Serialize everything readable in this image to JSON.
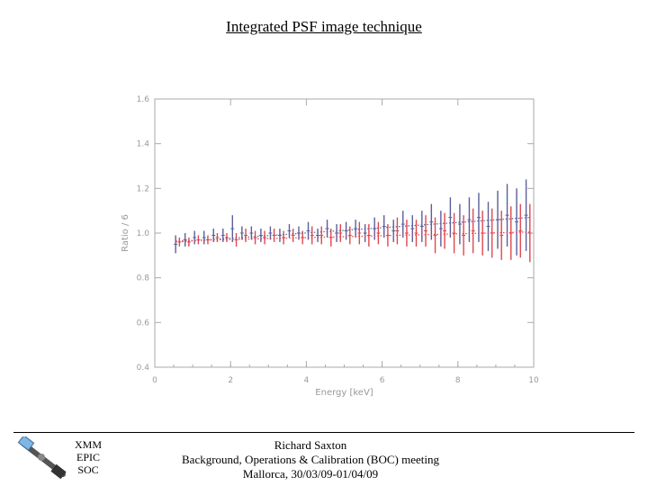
{
  "title": "Integrated PSF image technique",
  "footer": {
    "org_lines": [
      "XMM",
      "EPIC",
      "SOC"
    ],
    "author": "Richard Saxton",
    "meeting": "Background, Operations & Calibration (BOC) meeting",
    "venue": "Mallorca, 30/03/09-01/04/09"
  },
  "colors": {
    "series_blue": "#5a5f9c",
    "series_red": "#e0474c",
    "axis": "#aaaaaa"
  },
  "icons": {
    "logo": "satellite-icon"
  },
  "chart_data": {
    "type": "scatter",
    "title": "",
    "xlabel": "Energy [keV]",
    "ylabel": "Ratio / 6",
    "xlim": [
      0,
      10
    ],
    "ylim": [
      0.4,
      1.6
    ],
    "xticks": [
      "0",
      "2",
      "4",
      "6",
      "8",
      "10"
    ],
    "yticks": [
      "0.4",
      "0.6",
      "0.8",
      "1.0",
      "1.2",
      "1.4",
      "1.6"
    ],
    "grid": false,
    "series": [
      {
        "style": "error-bars",
        "color": "blue",
        "x": [
          0.55,
          0.8,
          1.05,
          1.3,
          1.55,
          1.8,
          2.05,
          2.3,
          2.55,
          2.8,
          3.05,
          3.3,
          3.55,
          3.8,
          4.05,
          4.3,
          4.55,
          4.8,
          5.05,
          5.3,
          5.55,
          5.8,
          6.05,
          6.3,
          6.55,
          6.8,
          7.05,
          7.3,
          7.55,
          7.8,
          8.05,
          8.3,
          8.55,
          8.8,
          9.05,
          9.3,
          9.55,
          9.8
        ],
        "y": [
          0.95,
          0.97,
          0.98,
          0.98,
          0.99,
          0.99,
          1.02,
          1.0,
          1.0,
          0.99,
          1.0,
          0.99,
          1.01,
          1.0,
          1.01,
          0.99,
          1.02,
          1.0,
          1.01,
          1.02,
          1.0,
          1.02,
          1.03,
          1.01,
          1.04,
          1.02,
          1.03,
          1.05,
          1.02,
          1.07,
          1.04,
          1.06,
          1.07,
          1.03,
          1.06,
          1.08,
          1.05,
          1.08
        ],
        "err": [
          0.04,
          0.03,
          0.03,
          0.03,
          0.03,
          0.03,
          0.06,
          0.03,
          0.03,
          0.03,
          0.03,
          0.03,
          0.03,
          0.03,
          0.04,
          0.03,
          0.04,
          0.04,
          0.04,
          0.04,
          0.04,
          0.05,
          0.05,
          0.05,
          0.06,
          0.06,
          0.07,
          0.08,
          0.08,
          0.09,
          0.09,
          0.1,
          0.11,
          0.11,
          0.13,
          0.14,
          0.15,
          0.16
        ]
      },
      {
        "style": "error-bars",
        "color": "red",
        "x": [
          0.65,
          0.9,
          1.15,
          1.4,
          1.65,
          1.9,
          2.15,
          2.4,
          2.65,
          2.9,
          3.15,
          3.4,
          3.65,
          3.9,
          4.15,
          4.4,
          4.65,
          4.9,
          5.15,
          5.4,
          5.65,
          5.9,
          6.15,
          6.4,
          6.65,
          6.9,
          7.15,
          7.4,
          7.65,
          7.9,
          8.15,
          8.4,
          8.65,
          8.9,
          9.15,
          9.4,
          9.65,
          9.9
        ],
        "y": [
          0.96,
          0.96,
          0.97,
          0.97,
          0.98,
          0.98,
          0.97,
          0.99,
          0.98,
          0.98,
          0.99,
          0.98,
          0.99,
          0.98,
          0.99,
          0.99,
          0.98,
          1.0,
          0.99,
          1.0,
          0.99,
          1.0,
          0.99,
          1.01,
          1.0,
          1.0,
          1.01,
          0.99,
          1.01,
          1.0,
          0.99,
          1.01,
          1.0,
          1.0,
          0.99,
          1.0,
          1.01,
          1.0
        ],
        "err": [
          0.02,
          0.02,
          0.02,
          0.02,
          0.02,
          0.02,
          0.03,
          0.03,
          0.03,
          0.03,
          0.03,
          0.03,
          0.03,
          0.03,
          0.04,
          0.04,
          0.04,
          0.04,
          0.04,
          0.05,
          0.05,
          0.05,
          0.05,
          0.06,
          0.06,
          0.06,
          0.07,
          0.08,
          0.08,
          0.09,
          0.09,
          0.1,
          0.1,
          0.11,
          0.11,
          0.12,
          0.12,
          0.13
        ]
      },
      {
        "style": "dotted-line",
        "color": "blue",
        "x": [
          0.55,
          9.9
        ],
        "y": [
          0.96,
          1.07
        ]
      },
      {
        "style": "dotted-line",
        "color": "red",
        "x": [
          0.55,
          9.9
        ],
        "y": [
          0.965,
          1.005
        ]
      }
    ]
  }
}
